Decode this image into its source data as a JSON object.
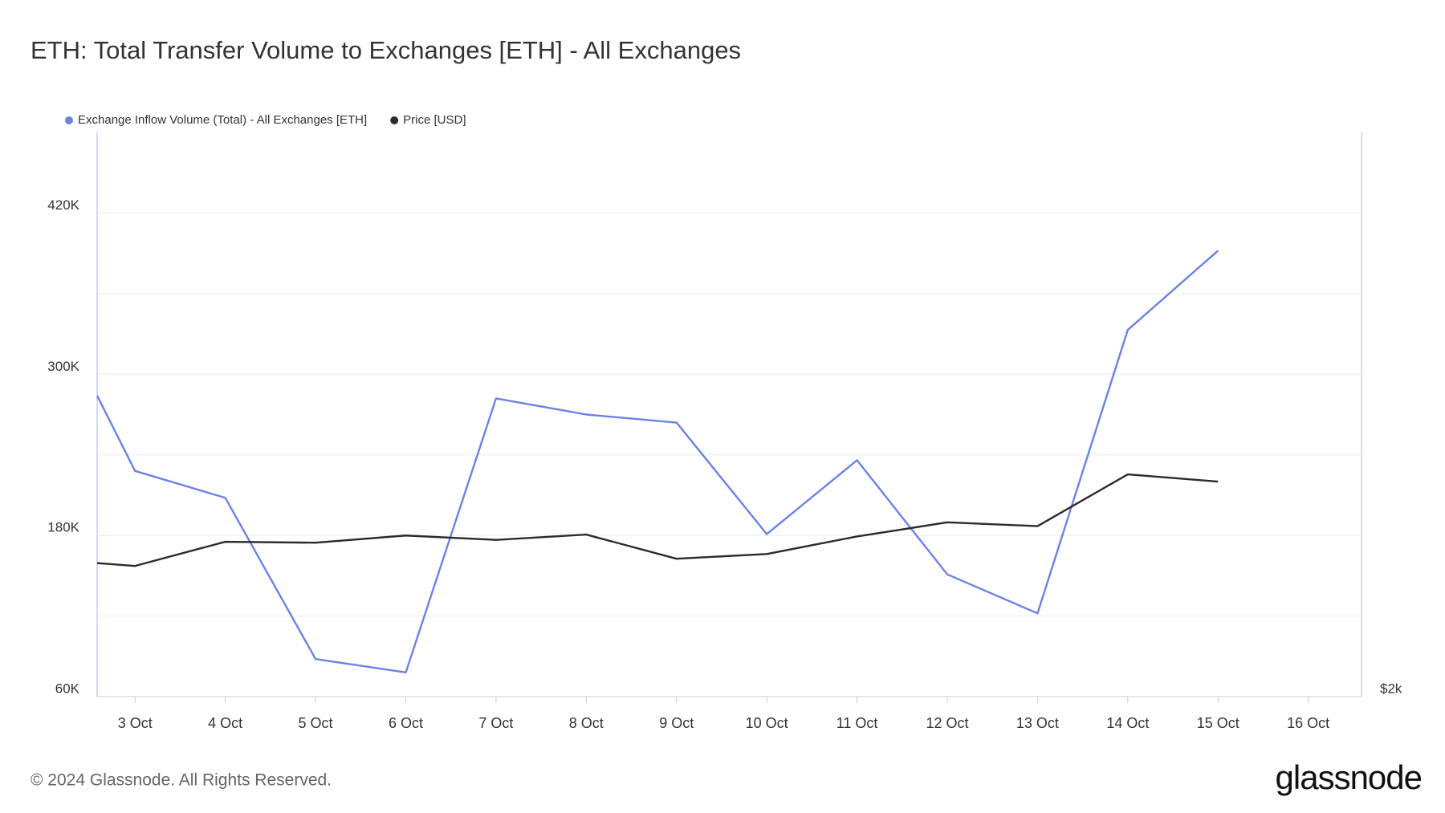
{
  "chart_data": {
    "type": "line",
    "title": "ETH: Total Transfer Volume to Exchanges [ETH] - All Exchanges",
    "x": [
      2.58,
      3,
      4,
      5,
      6,
      7,
      8,
      9,
      10,
      11,
      12,
      13,
      14,
      15
    ],
    "xlim": [
      2.58,
      16.59
    ],
    "xticks": [
      {
        "value": 3,
        "label": "3 Oct"
      },
      {
        "value": 4,
        "label": "4 Oct"
      },
      {
        "value": 5,
        "label": "5 Oct"
      },
      {
        "value": 6,
        "label": "6 Oct"
      },
      {
        "value": 7,
        "label": "7 Oct"
      },
      {
        "value": 8,
        "label": "8 Oct"
      },
      {
        "value": 9,
        "label": "9 Oct"
      },
      {
        "value": 10,
        "label": "10 Oct"
      },
      {
        "value": 11,
        "label": "11 Oct"
      },
      {
        "value": 12,
        "label": "12 Oct"
      },
      {
        "value": 13,
        "label": "13 Oct"
      },
      {
        "value": 14,
        "label": "14 Oct"
      },
      {
        "value": 15,
        "label": "15 Oct"
      },
      {
        "value": 16,
        "label": "16 Oct"
      }
    ],
    "ylim": [
      60000,
      480000
    ],
    "yticks": [
      {
        "value": 60000,
        "label": "60K"
      },
      {
        "value": 180000,
        "label": "180K"
      },
      {
        "value": 300000,
        "label": "300K"
      },
      {
        "value": 420000,
        "label": "420K"
      }
    ],
    "y2lim": [
      2000,
      3800
    ],
    "y2ticks": [
      {
        "value": 2000,
        "label": "$2k"
      }
    ],
    "grid": true,
    "legend": "top-left",
    "series": [
      {
        "name": "Exchange Inflow Volume (Total) - All Exchanges [ETH]",
        "color": "#6b82e8",
        "values": [
          284000,
          228000,
          208000,
          88000,
          78000,
          282000,
          270000,
          264000,
          181000,
          236000,
          151000,
          122000,
          333000,
          392000
        ]
      },
      {
        "name": "Price [USD]",
        "color": "#2b2b2b",
        "axis": "y2",
        "values": [
          2426,
          2417,
          2494,
          2491,
          2514,
          2500,
          2517,
          2440,
          2455,
          2511,
          2556,
          2544,
          2709,
          2686
        ]
      }
    ]
  },
  "copyright": "© 2024 Glassnode. All Rights Reserved.",
  "brand": "glassnode"
}
